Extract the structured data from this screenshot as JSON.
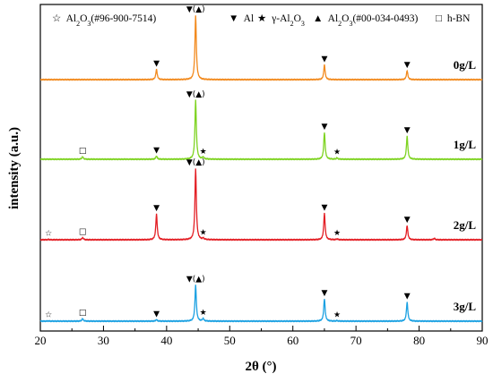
{
  "chart_data": {
    "type": "line",
    "xlabel": "2θ (°)",
    "ylabel": "intensity (a.u.)",
    "xlim": [
      20,
      90
    ],
    "x_ticks": [
      "20",
      "30",
      "40",
      "50",
      "60",
      "70",
      "80",
      "90"
    ],
    "grid": false,
    "legend": {
      "placement": "top",
      "items": [
        {
          "symbol": "☆",
          "pre": "Al",
          "sub1": "2",
          "mid": "O",
          "sub2": "3",
          "post": "(#96-900-7514)"
        },
        {
          "symbol": "▼",
          "text": "Al"
        },
        {
          "symbol": "★",
          "pre": "γ-Al",
          "sub1": "2",
          "mid": "O",
          "sub2": "3",
          "post": ""
        },
        {
          "symbol": "▲",
          "pre": "Al",
          "sub1": "2",
          "mid": "O",
          "sub2": "3",
          "post": "(#00-034-0493)"
        },
        {
          "symbol": "□",
          "text": "h-BN"
        }
      ]
    },
    "peak_width": 0.13,
    "series": [
      {
        "name": "0g/L",
        "color": "#F28A1E",
        "peaks": [
          [
            38.4,
            0.16
          ],
          [
            44.6,
            1.0
          ],
          [
            65.0,
            0.23
          ],
          [
            78.1,
            0.14
          ]
        ],
        "markers": [
          {
            "x": 38.4,
            "symbol": "▼"
          },
          {
            "x": 44.6,
            "symbol": "▼(▲)"
          },
          {
            "x": 65.0,
            "symbol": "▼"
          },
          {
            "x": 78.1,
            "symbol": "▼"
          }
        ]
      },
      {
        "name": "1g/L",
        "color": "#7ED321",
        "peaks": [
          [
            26.7,
            0.04
          ],
          [
            38.4,
            0.05
          ],
          [
            44.6,
            0.92
          ],
          [
            45.8,
            0.03
          ],
          [
            65.0,
            0.42
          ],
          [
            67.0,
            0.02
          ],
          [
            78.1,
            0.36
          ]
        ],
        "markers": [
          {
            "x": 26.7,
            "symbol": "□"
          },
          {
            "x": 38.4,
            "symbol": "▼"
          },
          {
            "x": 44.6,
            "symbol": "▼(▲)"
          },
          {
            "x": 45.8,
            "symbol": "★"
          },
          {
            "x": 65.0,
            "symbol": "▼"
          },
          {
            "x": 67.0,
            "symbol": "★"
          },
          {
            "x": 78.1,
            "symbol": "▼"
          }
        ]
      },
      {
        "name": "2g/L",
        "color": "#E31E24",
        "peaks": [
          [
            21.3,
            0.005
          ],
          [
            26.7,
            0.03
          ],
          [
            38.4,
            0.36
          ],
          [
            44.6,
            1.0
          ],
          [
            45.8,
            0.02
          ],
          [
            65.0,
            0.37
          ],
          [
            67.0,
            0.01
          ],
          [
            78.1,
            0.2
          ],
          [
            82.4,
            0.02
          ]
        ],
        "markers": [
          {
            "x": 21.3,
            "symbol": "☆"
          },
          {
            "x": 26.7,
            "symbol": "□"
          },
          {
            "x": 38.4,
            "symbol": "▼"
          },
          {
            "x": 44.6,
            "symbol": "▼(▲)"
          },
          {
            "x": 45.8,
            "symbol": "★"
          },
          {
            "x": 65.0,
            "symbol": "▼"
          },
          {
            "x": 67.0,
            "symbol": "★"
          },
          {
            "x": 78.1,
            "symbol": "▼"
          }
        ]
      },
      {
        "name": "3g/L",
        "color": "#1BA1E2",
        "peaks": [
          [
            21.3,
            0.005
          ],
          [
            26.7,
            0.05
          ],
          [
            38.4,
            0.03
          ],
          [
            44.6,
            0.72
          ],
          [
            45.8,
            0.05
          ],
          [
            65.0,
            0.45
          ],
          [
            67.0,
            0.01
          ],
          [
            78.1,
            0.38
          ]
        ],
        "markers": [
          {
            "x": 21.3,
            "symbol": "☆"
          },
          {
            "x": 26.7,
            "symbol": "□"
          },
          {
            "x": 38.4,
            "symbol": "▼"
          },
          {
            "x": 44.6,
            "symbol": "▼(▲)"
          },
          {
            "x": 45.8,
            "symbol": "★"
          },
          {
            "x": 65.0,
            "symbol": "▼"
          },
          {
            "x": 67.0,
            "symbol": "★"
          },
          {
            "x": 78.1,
            "symbol": "▼"
          }
        ]
      }
    ]
  }
}
